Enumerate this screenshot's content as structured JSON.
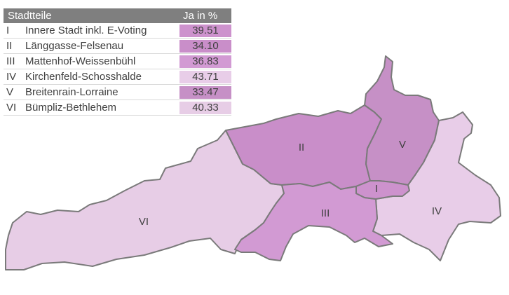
{
  "legend": {
    "header": {
      "district": "Stadtteile",
      "value": "Ja in %"
    },
    "rows": [
      {
        "num": "I",
        "name": "Innere Stadt inkl. E-Voting",
        "value": "39.51",
        "color": "#cd92cd"
      },
      {
        "num": "II",
        "name": "Länggasse-Felsenau",
        "value": "34.10",
        "color": "#c98ec9"
      },
      {
        "num": "III",
        "name": "Mattenhof-Weissenbühl",
        "value": "36.83",
        "color": "#d29ad3"
      },
      {
        "num": "IV",
        "name": "Kirchenfeld-Schosshalde",
        "value": "43.71",
        "color": "#e8cde8"
      },
      {
        "num": "V",
        "name": "Breitenrain-Lorraine",
        "value": "33.47",
        "color": "#c690c6"
      },
      {
        "num": "VI",
        "name": "Bümpliz-Bethlehem",
        "value": "40.33",
        "color": "#e7cde6"
      }
    ]
  },
  "map": {
    "labels": {
      "I": "I",
      "II": "II",
      "III": "III",
      "IV": "IV",
      "V": "V",
      "VI": "VI"
    }
  }
}
